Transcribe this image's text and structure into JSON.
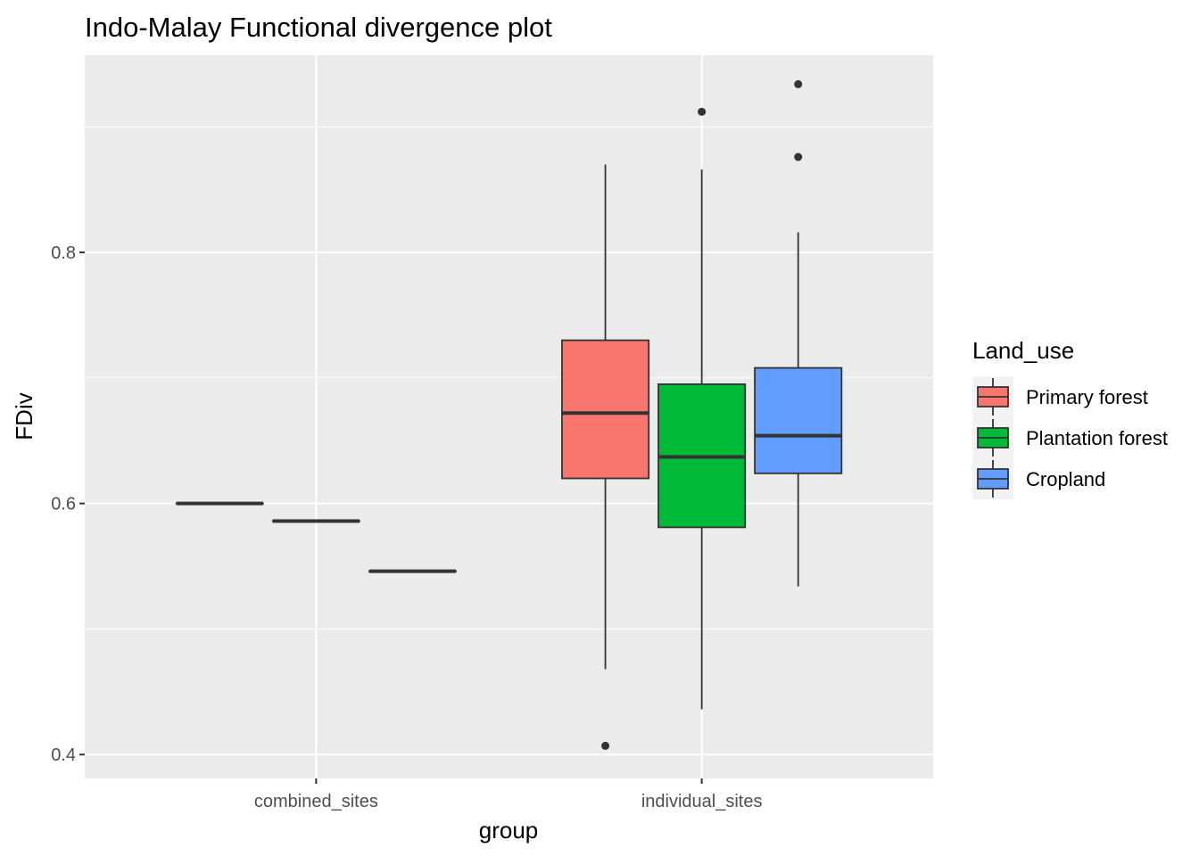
{
  "chart_data": {
    "type": "boxplot",
    "title": "Indo-Malay Functional divergence plot",
    "xlabel": "group",
    "ylabel": "FDiv",
    "categories": [
      "combined_sites",
      "individual_sites"
    ],
    "ylim": [
      0.381,
      0.957
    ],
    "yticks": [
      0.4,
      0.6,
      0.8
    ],
    "ytick_labels": [
      "0.4",
      "0.6",
      "0.8"
    ],
    "grid": true,
    "legend": {
      "title": "Land_use",
      "position": "right"
    },
    "series": [
      {
        "name": "Primary forest",
        "color": "#F8766D",
        "boxes": [
          {
            "category": "combined_sites",
            "min": 0.6,
            "q1": 0.6,
            "median": 0.6,
            "q3": 0.6,
            "max": 0.6,
            "outliers": []
          },
          {
            "category": "individual_sites",
            "min": 0.468,
            "q1": 0.62,
            "median": 0.672,
            "q3": 0.73,
            "max": 0.87,
            "outliers": [
              0.407
            ]
          }
        ]
      },
      {
        "name": "Plantation forest",
        "color": "#00BA38",
        "boxes": [
          {
            "category": "combined_sites",
            "min": 0.586,
            "q1": 0.586,
            "median": 0.586,
            "q3": 0.586,
            "max": 0.586,
            "outliers": []
          },
          {
            "category": "individual_sites",
            "min": 0.436,
            "q1": 0.581,
            "median": 0.637,
            "q3": 0.695,
            "max": 0.866,
            "outliers": [
              0.912
            ]
          }
        ]
      },
      {
        "name": "Cropland",
        "color": "#619CFF",
        "boxes": [
          {
            "category": "combined_sites",
            "min": 0.546,
            "q1": 0.546,
            "median": 0.546,
            "q3": 0.546,
            "max": 0.546,
            "outliers": []
          },
          {
            "category": "individual_sites",
            "min": 0.534,
            "q1": 0.624,
            "median": 0.654,
            "q3": 0.708,
            "max": 0.816,
            "outliers": [
              0.934,
              0.876
            ]
          }
        ]
      }
    ]
  }
}
